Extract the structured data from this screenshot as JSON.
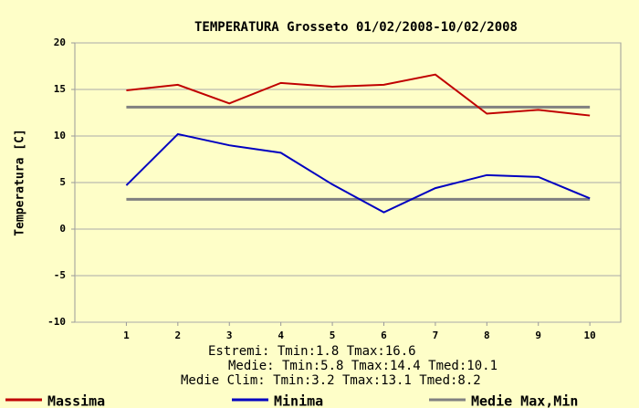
{
  "chart_data": {
    "type": "line",
    "title": "TEMPERATURA Grosseto 01/02/2008-10/02/2008",
    "ylabel": "Temperatura [C]",
    "x": [
      1,
      2,
      3,
      4,
      5,
      6,
      7,
      8,
      9,
      10
    ],
    "series": [
      {
        "name": "Massima",
        "color": "#c00000",
        "values": [
          14.9,
          15.5,
          13.5,
          15.7,
          15.3,
          15.5,
          16.6,
          12.4,
          12.8,
          12.2
        ]
      },
      {
        "name": "Minima",
        "color": "#0000c0",
        "values": [
          4.7,
          10.2,
          9.0,
          8.2,
          4.8,
          1.8,
          4.4,
          5.8,
          5.6,
          3.3
        ]
      }
    ],
    "reference_lines": {
      "name": "Medie Max,Min",
      "color": "#808080",
      "values": [
        13.1,
        3.2
      ]
    },
    "xlim": [
      0,
      10.6
    ],
    "xticks": [
      1,
      2,
      3,
      4,
      5,
      6,
      7,
      8,
      9,
      10
    ],
    "ylim": [
      -10,
      20
    ],
    "yticks": [
      -10,
      -5,
      0,
      5,
      10,
      15,
      20
    ],
    "grid": true,
    "annotations": [
      "Estremi: Tmin:1.8 Tmax:16.6",
      "Medie: Tmin:5.8 Tmax:14.4 Tmed:10.1",
      "Medie Clim: Tmin:3.2 Tmax:13.1 Tmed:8.2"
    ]
  }
}
